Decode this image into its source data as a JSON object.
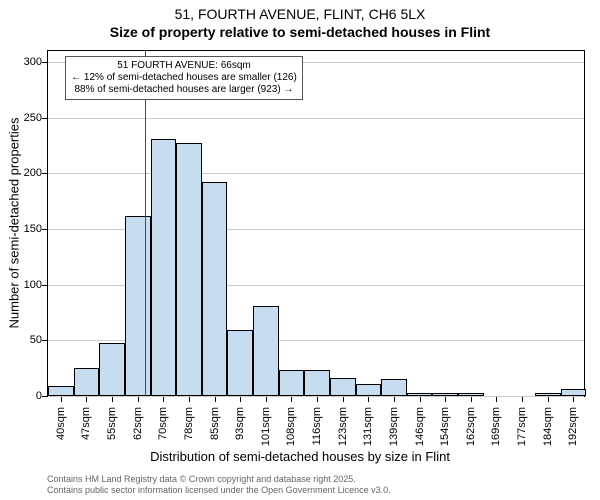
{
  "title_line1": "51, FOURTH AVENUE, FLINT, CH6 5LX",
  "title_line2": "Size of property relative to semi-detached houses in Flint",
  "ylabel": "Number of semi-detached properties",
  "xlabel": "Distribution of semi-detached houses by size in Flint",
  "footer_line1": "Contains HM Land Registry data © Crown copyright and database right 2025.",
  "footer_line2": "Contains public sector information licensed under the Open Government Licence v3.0.",
  "annotation": {
    "line1": "51 FOURTH AVENUE: 66sqm",
    "line2": "← 12% of semi-detached houses are smaller (126)",
    "line3": "88% of semi-detached houses are larger (923) →"
  },
  "chart": {
    "type": "histogram",
    "background_color": "#ffffff",
    "border_color": "#000000",
    "grid_color": "#cccccc",
    "bar_fill": "#c6dcf0",
    "bar_stroke": "#000000",
    "ref_line_color": "#c8102e",
    "ref_line_value": 66,
    "font_family": "Arial",
    "tick_fontsize": 11,
    "label_fontsize": 13,
    "title_fontsize": 14,
    "annotation_fontsize": 10,
    "ylim": [
      0,
      310
    ],
    "yticks": [
      0,
      50,
      100,
      150,
      200,
      250,
      300
    ],
    "xlim": [
      37,
      197
    ],
    "bin_width": 7.65,
    "bar_width_ratio": 1.0,
    "categories": [
      "40sqm",
      "47sqm",
      "55sqm",
      "62sqm",
      "70sqm",
      "78sqm",
      "85sqm",
      "93sqm",
      "101sqm",
      "108sqm",
      "116sqm",
      "123sqm",
      "131sqm",
      "139sqm",
      "146sqm",
      "154sqm",
      "162sqm",
      "169sqm",
      "177sqm",
      "184sqm",
      "192sqm"
    ],
    "bin_lefts": [
      37.0,
      44.65,
      52.3,
      59.95,
      67.6,
      75.25,
      82.9,
      90.55,
      98.2,
      105.85,
      113.5,
      121.15,
      128.8,
      136.45,
      144.1,
      151.75,
      159.4,
      167.05,
      174.7,
      182.35,
      190.0
    ],
    "values": [
      9,
      25,
      48,
      162,
      231,
      227,
      192,
      59,
      81,
      23,
      23,
      16,
      11,
      15,
      3,
      3,
      3,
      0,
      0,
      3,
      6
    ]
  }
}
